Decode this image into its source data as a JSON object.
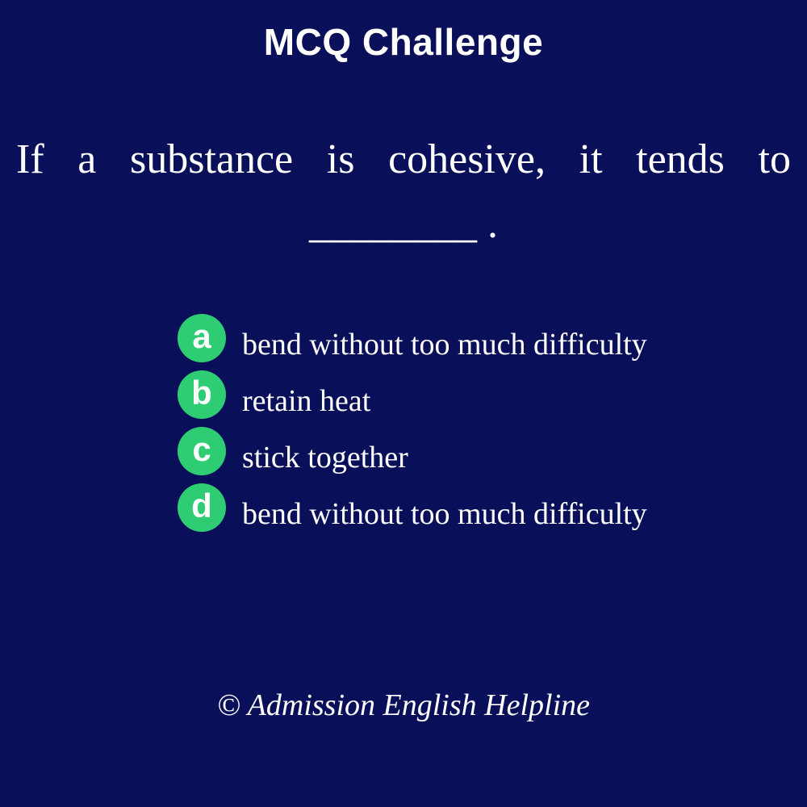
{
  "header": {
    "title": "MCQ Challenge"
  },
  "question": {
    "text": "If a substance is cohesive, it tends to ________ ."
  },
  "options": [
    {
      "letter": "a",
      "text": "bend without too much difficulty"
    },
    {
      "letter": "b",
      "text": "retain heat"
    },
    {
      "letter": "c",
      "text": "stick together"
    },
    {
      "letter": "d",
      "text": "bend without too much difficulty"
    }
  ],
  "footer": {
    "copyright": "© Admission English Helpline"
  },
  "colors": {
    "background": "#0a0f59",
    "badge": "#2fcd73",
    "text": "#ffffff"
  }
}
